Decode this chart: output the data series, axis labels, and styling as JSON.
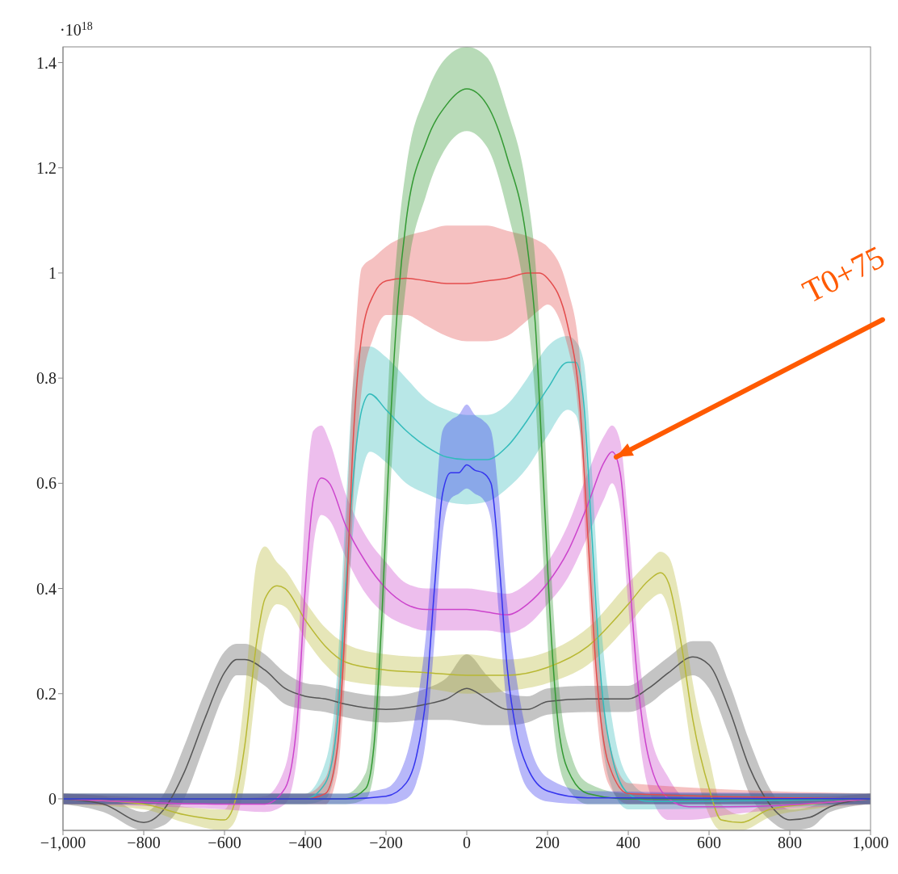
{
  "chart_data": {
    "type": "line",
    "xlim": [
      -1000,
      1000
    ],
    "ylim": [
      -0.06,
      1.43
    ],
    "xticks": [
      {
        "value": -1000,
        "label": "−1,000"
      },
      {
        "value": -800,
        "label": "−800"
      },
      {
        "value": -600,
        "label": "−600"
      },
      {
        "value": -400,
        "label": "−400"
      },
      {
        "value": -200,
        "label": "−200"
      },
      0,
      200,
      400,
      600,
      800,
      {
        "value": 1000,
        "label": "1,000"
      }
    ],
    "yticks": [
      0,
      0.2,
      0.4,
      0.6,
      0.8,
      1,
      1.2,
      1.4
    ],
    "annotations": [
      "·10$^{18}$",
      {
        "text": "T0+75",
        "x": 370,
        "y": 0.65
      }
    ],
    "series": [
      {
        "color": "#555555",
        "x": [
          -1000,
          -900,
          -800,
          -750,
          -700,
          -650,
          -600,
          -570,
          -550,
          -500,
          -450,
          -400,
          -350,
          -300,
          -200,
          -100,
          -50,
          0,
          50,
          100,
          150,
          200,
          300,
          400,
          450,
          500,
          560,
          600,
          650,
          700,
          750,
          800,
          850,
          900,
          1000
        ],
        "values": [
          0,
          -0.01,
          -0.045,
          -0.02,
          0.05,
          0.15,
          0.24,
          0.265,
          0.265,
          0.245,
          0.21,
          0.195,
          0.19,
          0.18,
          0.17,
          0.18,
          0.19,
          0.21,
          0.19,
          0.17,
          0.17,
          0.185,
          0.19,
          0.19,
          0.21,
          0.24,
          0.27,
          0.255,
          0.17,
          0.06,
          -0.01,
          -0.04,
          -0.035,
          -0.015,
          0
        ],
        "lower": [
          -0.01,
          -0.025,
          -0.06,
          -0.05,
          0.0,
          0.1,
          0.2,
          0.235,
          0.235,
          0.215,
          0.18,
          0.17,
          0.165,
          0.155,
          0.145,
          0.15,
          0.15,
          0.145,
          0.14,
          0.14,
          0.145,
          0.16,
          0.165,
          0.165,
          0.18,
          0.21,
          0.235,
          0.21,
          0.12,
          0.01,
          -0.04,
          -0.06,
          -0.055,
          -0.025,
          -0.01
        ],
        "upper": [
          0.01,
          0.005,
          -0.025,
          0.01,
          0.1,
          0.2,
          0.28,
          0.295,
          0.295,
          0.275,
          0.24,
          0.22,
          0.215,
          0.205,
          0.195,
          0.21,
          0.23,
          0.275,
          0.235,
          0.2,
          0.195,
          0.21,
          0.215,
          0.215,
          0.24,
          0.27,
          0.3,
          0.3,
          0.22,
          0.11,
          0.02,
          -0.02,
          -0.015,
          0.0,
          0.01
        ]
      },
      {
        "color": "#b8b833",
        "x": [
          -1000,
          -800,
          -700,
          -600,
          -580,
          -550,
          -520,
          -500,
          -470,
          -450,
          -400,
          -350,
          -300,
          -200,
          -100,
          0,
          100,
          200,
          300,
          400,
          450,
          480,
          500,
          530,
          560,
          600,
          630,
          680,
          750,
          850,
          1000
        ],
        "values": [
          0,
          -0.01,
          -0.03,
          -0.04,
          -0.02,
          0.1,
          0.3,
          0.38,
          0.405,
          0.4,
          0.34,
          0.29,
          0.26,
          0.245,
          0.24,
          0.235,
          0.235,
          0.25,
          0.29,
          0.37,
          0.415,
          0.43,
          0.41,
          0.3,
          0.15,
          0.02,
          -0.04,
          -0.045,
          -0.02,
          -0.01,
          0
        ],
        "lower": [
          -0.01,
          -0.02,
          -0.045,
          -0.06,
          -0.05,
          0.03,
          0.22,
          0.32,
          0.37,
          0.365,
          0.305,
          0.255,
          0.225,
          0.215,
          0.21,
          0.2,
          0.205,
          0.22,
          0.255,
          0.33,
          0.375,
          0.39,
          0.36,
          0.23,
          0.08,
          -0.03,
          -0.06,
          -0.06,
          -0.035,
          -0.02,
          -0.01
        ],
        "upper": [
          0.01,
          0.0,
          -0.015,
          -0.02,
          0.02,
          0.2,
          0.45,
          0.48,
          0.45,
          0.435,
          0.375,
          0.325,
          0.295,
          0.275,
          0.27,
          0.275,
          0.265,
          0.28,
          0.325,
          0.41,
          0.45,
          0.47,
          0.46,
          0.37,
          0.22,
          0.08,
          -0.01,
          -0.03,
          -0.005,
          0.0,
          0.01
        ]
      },
      {
        "color": "#cc44cc",
        "x": [
          -1000,
          -600,
          -500,
          -450,
          -420,
          -400,
          -380,
          -360,
          -340,
          -300,
          -250,
          -200,
          -150,
          -100,
          -50,
          0,
          50,
          100,
          150,
          200,
          250,
          300,
          340,
          360,
          380,
          400,
          420,
          450,
          500,
          550,
          650,
          1000
        ],
        "values": [
          0,
          -0.01,
          -0.01,
          0.02,
          0.15,
          0.4,
          0.57,
          0.61,
          0.6,
          0.52,
          0.45,
          0.4,
          0.37,
          0.36,
          0.36,
          0.36,
          0.355,
          0.35,
          0.37,
          0.41,
          0.47,
          0.56,
          0.64,
          0.66,
          0.62,
          0.45,
          0.25,
          0.08,
          0.0,
          -0.015,
          -0.015,
          0
        ],
        "lower": [
          -0.01,
          -0.02,
          -0.025,
          -0.01,
          0.08,
          0.3,
          0.48,
          0.54,
          0.53,
          0.46,
          0.39,
          0.35,
          0.33,
          0.32,
          0.32,
          0.32,
          0.32,
          0.315,
          0.33,
          0.37,
          0.42,
          0.5,
          0.57,
          0.6,
          0.55,
          0.37,
          0.17,
          0.02,
          -0.04,
          -0.04,
          -0.03,
          -0.01
        ],
        "upper": [
          0.01,
          0.0,
          0.005,
          0.06,
          0.25,
          0.55,
          0.7,
          0.71,
          0.68,
          0.58,
          0.5,
          0.45,
          0.41,
          0.4,
          0.4,
          0.4,
          0.395,
          0.39,
          0.41,
          0.45,
          0.52,
          0.62,
          0.69,
          0.71,
          0.68,
          0.53,
          0.33,
          0.14,
          0.04,
          0.0,
          0.0,
          0.01
        ]
      },
      {
        "color": "#33bbbb",
        "x": [
          -1000,
          -400,
          -350,
          -320,
          -300,
          -280,
          -260,
          -240,
          -200,
          -150,
          -100,
          -50,
          0,
          50,
          100,
          150,
          200,
          250,
          270,
          290,
          310,
          330,
          360,
          400,
          450,
          1000
        ],
        "values": [
          0,
          0,
          0.03,
          0.15,
          0.4,
          0.62,
          0.74,
          0.77,
          0.74,
          0.7,
          0.67,
          0.65,
          0.645,
          0.645,
          0.67,
          0.72,
          0.78,
          0.83,
          0.83,
          0.75,
          0.5,
          0.25,
          0.08,
          0.01,
          -0.005,
          0
        ],
        "lower": [
          -0.01,
          -0.01,
          0.0,
          0.08,
          0.3,
          0.52,
          0.62,
          0.66,
          0.64,
          0.6,
          0.58,
          0.565,
          0.56,
          0.565,
          0.59,
          0.63,
          0.69,
          0.74,
          0.73,
          0.63,
          0.38,
          0.15,
          0.02,
          -0.02,
          -0.02,
          -0.01
        ],
        "upper": [
          0.01,
          0.01,
          0.07,
          0.25,
          0.55,
          0.8,
          0.86,
          0.86,
          0.84,
          0.8,
          0.76,
          0.74,
          0.73,
          0.73,
          0.75,
          0.8,
          0.86,
          0.88,
          0.87,
          0.83,
          0.62,
          0.36,
          0.15,
          0.04,
          0.01,
          0.01
        ]
      },
      {
        "color": "#e34c4c",
        "x": [
          -1000,
          -400,
          -350,
          -320,
          -300,
          -280,
          -260,
          -230,
          -200,
          -150,
          -100,
          -50,
          0,
          50,
          100,
          150,
          180,
          200,
          250,
          280,
          300,
          320,
          350,
          400,
          1000
        ],
        "values": [
          0,
          0,
          0.01,
          0.1,
          0.35,
          0.7,
          0.88,
          0.96,
          0.985,
          0.99,
          0.985,
          0.98,
          0.98,
          0.985,
          0.99,
          1.0,
          1.0,
          0.99,
          0.9,
          0.75,
          0.5,
          0.25,
          0.07,
          0.01,
          0
        ],
        "lower": [
          -0.01,
          -0.01,
          -0.01,
          0.05,
          0.25,
          0.58,
          0.78,
          0.88,
          0.92,
          0.92,
          0.9,
          0.88,
          0.87,
          0.87,
          0.88,
          0.91,
          0.93,
          0.94,
          0.86,
          0.7,
          0.42,
          0.18,
          0.03,
          -0.01,
          -0.01
        ],
        "upper": [
          0.01,
          0.01,
          0.04,
          0.2,
          0.5,
          0.82,
          1.01,
          1.03,
          1.05,
          1.07,
          1.08,
          1.09,
          1.09,
          1.09,
          1.08,
          1.07,
          1.06,
          1.05,
          0.97,
          0.84,
          0.6,
          0.34,
          0.12,
          0.03,
          0.01
        ]
      },
      {
        "color": "#339933",
        "x": [
          -1000,
          -300,
          -250,
          -230,
          -210,
          -190,
          -170,
          -150,
          -100,
          -50,
          0,
          50,
          100,
          150,
          170,
          190,
          210,
          230,
          260,
          300,
          400,
          1000
        ],
        "values": [
          0,
          0,
          0.02,
          0.1,
          0.35,
          0.7,
          0.95,
          1.1,
          1.25,
          1.32,
          1.35,
          1.32,
          1.22,
          1.05,
          0.9,
          0.6,
          0.3,
          0.12,
          0.04,
          0.01,
          0,
          0
        ],
        "lower": [
          -0.01,
          -0.01,
          0.0,
          0.05,
          0.25,
          0.58,
          0.82,
          0.98,
          1.15,
          1.24,
          1.27,
          1.24,
          1.12,
          0.92,
          0.76,
          0.45,
          0.18,
          0.06,
          0.01,
          -0.01,
          -0.01,
          -0.01
        ],
        "upper": [
          0.01,
          0.01,
          0.05,
          0.18,
          0.5,
          0.85,
          1.07,
          1.2,
          1.34,
          1.41,
          1.43,
          1.41,
          1.31,
          1.15,
          1.02,
          0.75,
          0.42,
          0.2,
          0.08,
          0.03,
          0.01,
          0.01
        ]
      },
      {
        "color": "#3333ee",
        "x": [
          -1000,
          -300,
          -200,
          -150,
          -125,
          -100,
          -80,
          -60,
          -40,
          -20,
          0,
          20,
          40,
          60,
          80,
          100,
          125,
          150,
          200,
          300,
          1000
        ],
        "values": [
          0,
          0,
          0.005,
          0.03,
          0.08,
          0.2,
          0.4,
          0.58,
          0.62,
          0.62,
          0.635,
          0.625,
          0.62,
          0.6,
          0.45,
          0.25,
          0.12,
          0.06,
          0.015,
          0.002,
          0
        ],
        "lower": [
          -0.01,
          -0.01,
          -0.01,
          0.0,
          0.03,
          0.12,
          0.3,
          0.5,
          0.57,
          0.58,
          0.59,
          0.58,
          0.57,
          0.53,
          0.35,
          0.17,
          0.07,
          0.02,
          -0.005,
          -0.01,
          -0.01
        ],
        "upper": [
          0.01,
          0.01,
          0.02,
          0.08,
          0.17,
          0.32,
          0.52,
          0.7,
          0.72,
          0.73,
          0.75,
          0.73,
          0.72,
          0.7,
          0.57,
          0.37,
          0.22,
          0.12,
          0.04,
          0.015,
          0.01
        ]
      }
    ]
  }
}
